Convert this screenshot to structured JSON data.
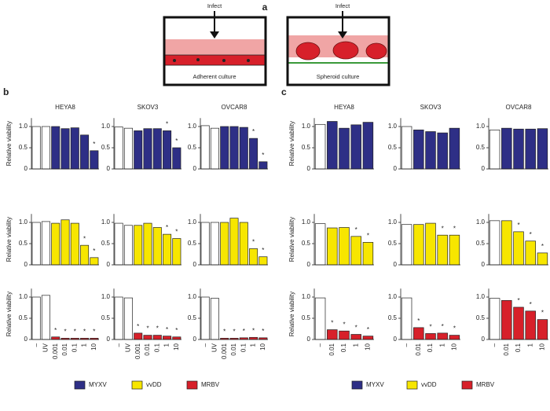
{
  "diagram": {
    "label": "a",
    "infect_left": "Infect",
    "infect_right": "Infect",
    "left_caption": "Adherent culture",
    "right_caption": "Spheroid culture"
  },
  "panels": [
    {
      "label": "b"
    },
    {
      "label": "c"
    }
  ],
  "chart_data": [
    {
      "type": "bar",
      "title": "HEYA8",
      "ylabel": "Relative viability",
      "ylim": [
        0,
        1.2
      ],
      "yticks": [
        0,
        0.5,
        {
          "value": 1,
          "label": "1.0"
        }
      ],
      "series": [
        {
          "name": "MYXV",
          "color": "#2e2f86",
          "colors": [
            "#ffffff",
            "#ffffff",
            "#2e2f86",
            "#2e2f86",
            "#2e2f86",
            "#2e2f86",
            "#2e2f86"
          ],
          "values": [
            1.0,
            1.0,
            1.0,
            0.95,
            0.97,
            0.8,
            0.43
          ]
        }
      ],
      "annotations": [
        null,
        null,
        null,
        null,
        null,
        null,
        "*"
      ]
    },
    {
      "type": "bar",
      "title": "SKOV3",
      "ylim": [
        0,
        1.2
      ],
      "yticks": [
        0,
        0.5,
        {
          "value": 1,
          "label": "1.0"
        }
      ],
      "series": [
        {
          "name": "MYXV",
          "color": "#2e2f86",
          "colors": [
            "#ffffff",
            "#ffffff",
            "#2e2f86",
            "#2e2f86",
            "#2e2f86",
            "#2e2f86",
            "#2e2f86"
          ],
          "values": [
            0.99,
            0.96,
            0.9,
            0.95,
            0.95,
            0.9,
            0.5
          ]
        }
      ],
      "annotations": [
        null,
        null,
        null,
        null,
        null,
        "*",
        "*"
      ]
    },
    {
      "type": "bar",
      "title": "OVCAR8",
      "ylim": [
        0,
        1.2
      ],
      "yticks": [
        0,
        0.5,
        {
          "value": 1,
          "label": "1.0"
        }
      ],
      "series": [
        {
          "name": "MYXV",
          "color": "#2e2f86",
          "colors": [
            "#ffffff",
            "#ffffff",
            "#2e2f86",
            "#2e2f86",
            "#2e2f86",
            "#2e2f86",
            "#2e2f86"
          ],
          "values": [
            1.02,
            0.96,
            1.0,
            1.0,
            0.98,
            0.72,
            0.17
          ]
        }
      ],
      "annotations": [
        null,
        null,
        null,
        null,
        null,
        "*",
        "*"
      ]
    },
    {
      "type": "bar",
      "ylabel": "Relative viability",
      "ylim": [
        0,
        1.2
      ],
      "yticks": [
        0,
        0.5,
        {
          "value": 1,
          "label": "1.0"
        }
      ],
      "series": [
        {
          "name": "vvDD",
          "color": "#f7e600",
          "colors": [
            "#ffffff",
            "#ffffff",
            "#f7e600",
            "#f7e600",
            "#f7e600",
            "#f7e600",
            "#f7e600"
          ],
          "values": [
            1.0,
            1.02,
            0.98,
            1.06,
            0.98,
            0.46,
            0.17
          ]
        }
      ],
      "annotations": [
        null,
        null,
        null,
        null,
        null,
        "*",
        "*"
      ]
    },
    {
      "type": "bar",
      "ylim": [
        0,
        1.2
      ],
      "yticks": [
        0,
        0.5,
        {
          "value": 1,
          "label": "1.0"
        }
      ],
      "series": [
        {
          "name": "vvDD",
          "color": "#f7e600",
          "colors": [
            "#ffffff",
            "#ffffff",
            "#f7e600",
            "#f7e600",
            "#f7e600",
            "#f7e600",
            "#f7e600"
          ],
          "values": [
            0.98,
            0.93,
            0.93,
            0.98,
            0.88,
            0.72,
            0.62
          ]
        }
      ],
      "annotations": [
        null,
        null,
        null,
        null,
        null,
        "*",
        "*"
      ]
    },
    {
      "type": "bar",
      "ylim": [
        0,
        1.2
      ],
      "yticks": [
        0,
        0.5,
        {
          "value": 1,
          "label": "1.0"
        }
      ],
      "series": [
        {
          "name": "vvDD",
          "color": "#f7e600",
          "colors": [
            "#ffffff",
            "#ffffff",
            "#f7e600",
            "#f7e600",
            "#f7e600",
            "#f7e600",
            "#f7e600"
          ],
          "values": [
            1.0,
            1.0,
            1.0,
            1.1,
            1.0,
            0.38,
            0.19
          ]
        }
      ],
      "annotations": [
        null,
        null,
        null,
        null,
        null,
        "*",
        "*"
      ]
    },
    {
      "type": "bar",
      "ylabel": "Relative viability",
      "ylim": [
        0,
        1.2
      ],
      "yticks": [
        0,
        0.5,
        {
          "value": 1,
          "label": "1.0"
        }
      ],
      "categories": [
        "–",
        "UV",
        "0.001",
        "0.01",
        "0.1",
        "1",
        "10"
      ],
      "series": [
        {
          "name": "MRBV",
          "color": "#d7202a",
          "colors": [
            "#ffffff",
            "#ffffff",
            "#d7202a",
            "#d7202a",
            "#d7202a",
            "#d7202a",
            "#d7202a"
          ],
          "values": [
            1.0,
            1.04,
            0.06,
            0.03,
            0.03,
            0.03,
            0.03
          ]
        }
      ],
      "annotations": [
        null,
        null,
        "*",
        "*",
        "*",
        "*",
        "*"
      ]
    },
    {
      "type": "bar",
      "ylim": [
        0,
        1.2
      ],
      "yticks": [
        0,
        0.5,
        {
          "value": 1,
          "label": "1.0"
        }
      ],
      "categories": [
        "–",
        "UV",
        "0.001",
        "0.01",
        "0.1",
        "1",
        "10"
      ],
      "series": [
        {
          "name": "MRBV",
          "color": "#d7202a",
          "colors": [
            "#ffffff",
            "#ffffff",
            "#d7202a",
            "#d7202a",
            "#d7202a",
            "#d7202a",
            "#d7202a"
          ],
          "values": [
            1.0,
            0.98,
            0.15,
            0.1,
            0.1,
            0.08,
            0.06
          ]
        }
      ],
      "annotations": [
        null,
        null,
        "*",
        "*",
        "*",
        "*",
        "*"
      ]
    },
    {
      "type": "bar",
      "ylim": [
        0,
        1.2
      ],
      "yticks": [
        0,
        0.5,
        {
          "value": 1,
          "label": "1.0"
        }
      ],
      "categories": [
        "–",
        "UV",
        "0.001",
        "0.01",
        "0.1",
        "1",
        "10"
      ],
      "series": [
        {
          "name": "MRBV",
          "color": "#d7202a",
          "colors": [
            "#ffffff",
            "#ffffff",
            "#d7202a",
            "#d7202a",
            "#d7202a",
            "#d7202a",
            "#d7202a"
          ],
          "values": [
            1.0,
            0.97,
            0.03,
            0.03,
            0.04,
            0.05,
            0.04
          ]
        }
      ],
      "annotations": [
        null,
        null,
        "*",
        "*",
        "*",
        "*",
        "*"
      ]
    },
    {
      "type": "bar",
      "title": "HEYA8",
      "ylabel": "Relative viability",
      "ylim": [
        0,
        1.2
      ],
      "yticks": [
        0,
        0.5,
        {
          "value": 1,
          "label": "1.0"
        }
      ],
      "series": [
        {
          "name": "MYXV",
          "color": "#2e2f86",
          "colors": [
            "#ffffff",
            "#2e2f86",
            "#2e2f86",
            "#2e2f86",
            "#2e2f86"
          ],
          "values": [
            1.05,
            1.12,
            0.96,
            1.04,
            1.1
          ]
        }
      ],
      "annotations": [
        null,
        null,
        null,
        null,
        null
      ]
    },
    {
      "type": "bar",
      "title": "SKOV3",
      "ylim": [
        0,
        1.2
      ],
      "yticks": [
        0,
        0.5,
        {
          "value": 1,
          "label": "1.0"
        }
      ],
      "series": [
        {
          "name": "MYXV",
          "color": "#2e2f86",
          "colors": [
            "#ffffff",
            "#2e2f86",
            "#2e2f86",
            "#2e2f86",
            "#2e2f86"
          ],
          "values": [
            1.0,
            0.92,
            0.88,
            0.85,
            0.96
          ]
        }
      ],
      "annotations": [
        null,
        null,
        null,
        null,
        null
      ]
    },
    {
      "type": "bar",
      "title": "OVCAR8",
      "ylim": [
        0,
        1.2
      ],
      "yticks": [
        0,
        0.5,
        {
          "value": 1,
          "label": "1.0"
        }
      ],
      "series": [
        {
          "name": "MYXV",
          "color": "#2e2f86",
          "colors": [
            "#ffffff",
            "#2e2f86",
            "#2e2f86",
            "#2e2f86",
            "#2e2f86"
          ],
          "values": [
            0.92,
            0.96,
            0.94,
            0.94,
            0.95
          ]
        }
      ],
      "annotations": [
        null,
        null,
        null,
        null,
        null
      ]
    },
    {
      "type": "bar",
      "ylabel": "Relative viability",
      "ylim": [
        0,
        1.2
      ],
      "yticks": [
        0,
        0.5,
        {
          "value": 1,
          "label": "1.0"
        }
      ],
      "series": [
        {
          "name": "vvDD",
          "color": "#f7e600",
          "colors": [
            "#ffffff",
            "#f7e600",
            "#f7e600",
            "#f7e600",
            "#f7e600"
          ],
          "values": [
            0.97,
            0.87,
            0.88,
            0.67,
            0.53
          ]
        }
      ],
      "annotations": [
        null,
        null,
        null,
        "*",
        "*"
      ]
    },
    {
      "type": "bar",
      "ylim": [
        0,
        1.2
      ],
      "yticks": [
        0,
        0.5,
        {
          "value": 1,
          "label": "1.0"
        }
      ],
      "series": [
        {
          "name": "vvDD",
          "color": "#f7e600",
          "colors": [
            "#ffffff",
            "#f7e600",
            "#f7e600",
            "#f7e600",
            "#f7e600"
          ],
          "values": [
            0.95,
            0.95,
            0.98,
            0.7,
            0.7
          ]
        }
      ],
      "annotations": [
        null,
        null,
        null,
        "*",
        "*"
      ]
    },
    {
      "type": "bar",
      "ylim": [
        0,
        1.2
      ],
      "yticks": [
        0,
        0.5,
        {
          "value": 1,
          "label": "1.0"
        }
      ],
      "series": [
        {
          "name": "vvDD",
          "color": "#f7e600",
          "colors": [
            "#ffffff",
            "#f7e600",
            "#f7e600",
            "#f7e600",
            "#f7e600"
          ],
          "values": [
            1.04,
            1.04,
            0.78,
            0.56,
            0.28
          ]
        }
      ],
      "annotations": [
        null,
        null,
        "*",
        "*",
        "*"
      ]
    },
    {
      "type": "bar",
      "ylabel": "Relative viability",
      "ylim": [
        0,
        1.2
      ],
      "yticks": [
        0,
        0.5,
        {
          "value": 1,
          "label": "1.0"
        }
      ],
      "categories": [
        "–",
        "0.01",
        "0.1",
        "1",
        "10"
      ],
      "series": [
        {
          "name": "MRBV",
          "color": "#d7202a",
          "colors": [
            "#ffffff",
            "#d7202a",
            "#d7202a",
            "#d7202a",
            "#d7202a"
          ],
          "values": [
            0.98,
            0.23,
            0.2,
            0.12,
            0.08
          ]
        }
      ],
      "annotations": [
        null,
        "*",
        "*",
        "*",
        "*"
      ]
    },
    {
      "type": "bar",
      "ylim": [
        0,
        1.2
      ],
      "yticks": [
        0,
        0.5,
        {
          "value": 1,
          "label": "1.0"
        }
      ],
      "categories": [
        "–",
        "0.01",
        "0.1",
        "1",
        "10"
      ],
      "series": [
        {
          "name": "MRBV",
          "color": "#d7202a",
          "colors": [
            "#ffffff",
            "#d7202a",
            "#d7202a",
            "#d7202a",
            "#d7202a"
          ],
          "values": [
            0.98,
            0.28,
            0.14,
            0.15,
            0.1
          ]
        }
      ],
      "annotations": [
        null,
        "*",
        "*",
        "*",
        "*"
      ]
    },
    {
      "type": "bar",
      "ylim": [
        0,
        1.2
      ],
      "yticks": [
        0,
        0.5,
        {
          "value": 1,
          "label": "1.0"
        }
      ],
      "categories": [
        "–",
        "0.01",
        "0.1",
        "1",
        "10"
      ],
      "series": [
        {
          "name": "MRBV",
          "color": "#d7202a",
          "colors": [
            "#ffffff",
            "#d7202a",
            "#d7202a",
            "#d7202a",
            "#d7202a"
          ],
          "values": [
            0.97,
            0.92,
            0.76,
            0.67,
            0.47
          ]
        }
      ],
      "annotations": [
        null,
        null,
        "*",
        "*",
        "*"
      ]
    }
  ]
}
